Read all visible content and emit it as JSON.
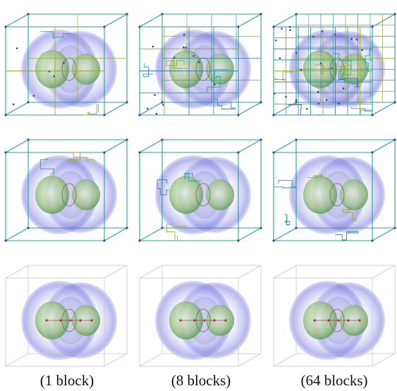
{
  "figure": {
    "captions": [
      "(1 block)",
      "(8 blocks)",
      "(64 blocks)"
    ]
  }
}
